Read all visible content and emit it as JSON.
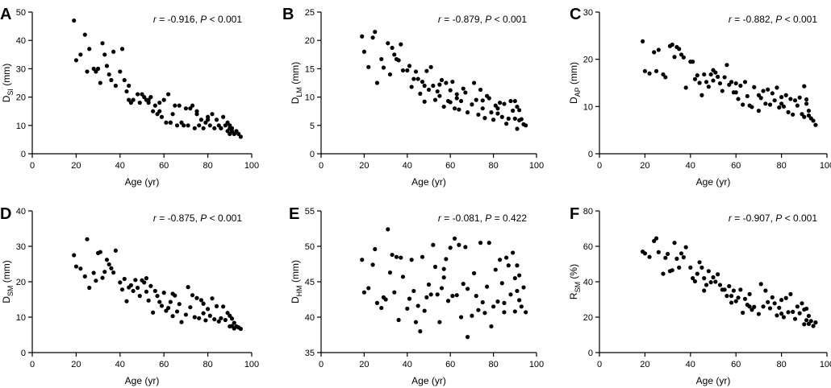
{
  "figure": {
    "panels": [
      "A",
      "B",
      "C",
      "D",
      "E",
      "F"
    ]
  },
  "chart_data": [
    {
      "panel": "A",
      "type": "scatter",
      "xlabel": "Age (yr)",
      "ylabel_main": "D",
      "ylabel_sub": "SI",
      "ylabel_unit": " (mm)",
      "xlim": [
        0,
        100
      ],
      "ylim": [
        0,
        50
      ],
      "xticks": [
        0,
        20,
        40,
        60,
        80,
        100
      ],
      "yticks": [
        0,
        10,
        20,
        30,
        40,
        50
      ],
      "stat_r_symbol": "r",
      "stat_r_value": " = -0.916, ",
      "stat_p_symbol": "P",
      "stat_p_value": " < 0.001",
      "x": [
        19,
        20,
        22,
        24,
        25,
        26,
        28,
        29,
        30,
        31,
        32,
        33,
        34,
        35,
        36,
        37,
        38,
        40,
        41,
        42,
        43,
        44,
        45,
        46,
        48,
        49,
        50,
        51,
        52,
        53,
        54,
        55,
        56,
        57,
        58,
        59,
        60,
        61,
        62,
        63,
        64,
        65,
        66,
        67,
        68,
        70,
        71,
        72,
        73,
        74,
        75,
        76,
        77,
        78,
        79,
        80,
        81,
        82,
        83,
        84,
        85,
        86,
        87,
        88,
        89,
        89,
        90,
        90,
        90,
        91,
        91,
        92,
        92,
        93,
        94,
        95,
        63,
        75,
        58,
        80,
        44,
        53,
        69,
        86
      ],
      "y": [
        47,
        33,
        35,
        42,
        29,
        37,
        30,
        29,
        30,
        25,
        39,
        35,
        31,
        28,
        26,
        36,
        24,
        29,
        37,
        26,
        22,
        19,
        18,
        19,
        21,
        18,
        21,
        20,
        19,
        19,
        20,
        15,
        17,
        14,
        18,
        13,
        19,
        11,
        21,
        11,
        14,
        17,
        10,
        17,
        11,
        16,
        10,
        16,
        17,
        9,
        15,
        10,
        12,
        9,
        11,
        12,
        10,
        14,
        9,
        12,
        10,
        9,
        13,
        10,
        11,
        8,
        9,
        10,
        7,
        8,
        9,
        7,
        7,
        8,
        7,
        6,
        11,
        14,
        15,
        13,
        24,
        18,
        10,
        9
      ]
    },
    {
      "panel": "B",
      "type": "scatter",
      "xlabel": "Age (yr)",
      "ylabel_main": "D",
      "ylabel_sub": "LM",
      "ylabel_unit": " (mm)",
      "xlim": [
        0,
        100
      ],
      "ylim": [
        0,
        25
      ],
      "xticks": [
        0,
        20,
        40,
        60,
        80,
        100
      ],
      "yticks": [
        0,
        5,
        10,
        15,
        20,
        25
      ],
      "stat_r_symbol": "r",
      "stat_r_value": " = -0.879, ",
      "stat_p_symbol": "P",
      "stat_p_value": " < 0.001",
      "x": [
        19,
        20,
        22,
        24,
        25,
        26,
        28,
        29,
        31,
        32,
        33,
        34,
        35,
        36,
        37,
        38,
        40,
        41,
        42,
        43,
        44,
        45,
        46,
        47,
        48,
        49,
        50,
        51,
        52,
        53,
        54,
        55,
        56,
        57,
        58,
        59,
        60,
        61,
        62,
        63,
        64,
        65,
        66,
        67,
        68,
        70,
        71,
        72,
        73,
        74,
        75,
        76,
        77,
        78,
        79,
        80,
        81,
        82,
        83,
        84,
        85,
        86,
        87,
        88,
        89,
        90,
        90,
        91,
        91,
        92,
        92,
        93,
        94,
        95,
        55,
        63,
        75,
        82,
        60,
        48
      ],
      "y": [
        20.7,
        18,
        15.3,
        20.5,
        21.5,
        12.5,
        16.7,
        15.2,
        19.5,
        14,
        18.7,
        17.5,
        16.7,
        16.5,
        19.3,
        14.7,
        14.7,
        15.5,
        11.8,
        13.2,
        14.5,
        13.2,
        10.6,
        12.7,
        9.2,
        14.6,
        11.3,
        15.3,
        12,
        9.5,
        11,
        10.2,
        13,
        8.3,
        12.5,
        9.3,
        11.2,
        12.7,
        8,
        10.5,
        7.8,
        9.3,
        11.5,
        10.8,
        7.3,
        8.7,
        12.5,
        9.5,
        6.9,
        11.3,
        8,
        6.3,
        10.2,
        9.8,
        7.3,
        6,
        8.5,
        7.1,
        9,
        6.5,
        8.8,
        5.3,
        6.2,
        9.3,
        7.6,
        9.3,
        6.2,
        8.3,
        4.4,
        7.7,
        5.9,
        6.1,
        5.2,
        5,
        12.2,
        9.8,
        9.4,
        8,
        9.1,
        12
      ]
    },
    {
      "panel": "C",
      "type": "scatter",
      "xlabel": "Age (yr)",
      "ylabel_main": "D",
      "ylabel_sub": "AP",
      "ylabel_unit": " (mm)",
      "xlim": [
        0,
        100
      ],
      "ylim": [
        0,
        30
      ],
      "xticks": [
        0,
        20,
        40,
        60,
        80,
        100
      ],
      "yticks": [
        0,
        10,
        20,
        30
      ],
      "stat_r_symbol": "r",
      "stat_r_value": " = -0.882, ",
      "stat_p_symbol": "P",
      "stat_p_value": " < 0.001",
      "x": [
        19,
        20,
        22,
        24,
        25,
        26,
        28,
        29,
        31,
        32,
        33,
        34,
        35,
        36,
        37,
        38,
        40,
        41,
        42,
        43,
        44,
        45,
        46,
        47,
        48,
        49,
        50,
        51,
        52,
        53,
        54,
        55,
        56,
        57,
        58,
        59,
        60,
        61,
        62,
        63,
        64,
        65,
        66,
        67,
        68,
        70,
        71,
        72,
        73,
        74,
        75,
        76,
        77,
        78,
        79,
        80,
        81,
        82,
        83,
        84,
        85,
        86,
        87,
        88,
        89,
        90,
        90,
        91,
        91,
        92,
        92,
        93,
        94,
        95,
        50,
        60,
        70,
        80
      ],
      "y": [
        23.8,
        17.5,
        17,
        21.5,
        17.5,
        22,
        16.8,
        16.2,
        22.8,
        23.1,
        20.5,
        22.6,
        22.2,
        21,
        20.4,
        14,
        19.5,
        19.5,
        15.8,
        16.6,
        15,
        12.4,
        16.8,
        15.2,
        14.2,
        16.8,
        17.7,
        17.2,
        16.3,
        14.9,
        13.3,
        16.2,
        18.8,
        14.6,
        15.2,
        13,
        14.9,
        11.6,
        14.4,
        10.4,
        15.2,
        12.2,
        10.2,
        9.9,
        14.1,
        9.1,
        11.8,
        13.3,
        10.6,
        13.6,
        10.4,
        12.8,
        11.3,
        14,
        9.8,
        12,
        10,
        12.4,
        8.8,
        11.6,
        8.3,
        11.3,
        10.2,
        11.9,
        8.4,
        14.3,
        7.8,
        11.5,
        10.6,
        8.1,
        9.1,
        7.5,
        7,
        6.1,
        15.5,
        13,
        12.4,
        10.6
      ]
    },
    {
      "panel": "D",
      "type": "scatter",
      "xlabel": "Age (yr)",
      "ylabel_main": "D",
      "ylabel_sub": "SM",
      "ylabel_unit": " (mm)",
      "xlim": [
        0,
        100
      ],
      "ylim": [
        0,
        40
      ],
      "xticks": [
        0,
        20,
        40,
        60,
        80,
        100
      ],
      "yticks": [
        0,
        10,
        20,
        30,
        40
      ],
      "stat_r_symbol": "r",
      "stat_r_value": " = -0.875, ",
      "stat_p_symbol": "P",
      "stat_p_value": " < 0.001",
      "x": [
        19,
        20,
        22,
        24,
        25,
        26,
        28,
        29,
        30,
        31,
        32,
        33,
        34,
        35,
        36,
        37,
        38,
        40,
        41,
        42,
        43,
        44,
        45,
        46,
        47,
        48,
        49,
        50,
        51,
        52,
        53,
        54,
        55,
        56,
        57,
        58,
        59,
        60,
        61,
        62,
        63,
        64,
        65,
        66,
        67,
        68,
        70,
        71,
        72,
        73,
        74,
        75,
        76,
        77,
        78,
        79,
        80,
        81,
        82,
        83,
        84,
        85,
        86,
        87,
        88,
        89,
        90,
        90,
        91,
        91,
        92,
        92,
        93,
        94,
        95,
        52,
        64,
        78
      ],
      "y": [
        27.5,
        24.3,
        23.7,
        21.5,
        32,
        18.3,
        22.5,
        20.3,
        28.1,
        28.4,
        21.1,
        22.8,
        26.2,
        24.9,
        23.8,
        22.6,
        28.8,
        19.8,
        17.8,
        20.8,
        14.5,
        18.4,
        19,
        17.4,
        20.5,
        18.3,
        16,
        20.4,
        19.8,
        17.2,
        14.7,
        18.8,
        11.3,
        17.4,
        16,
        14.3,
        13.2,
        16.9,
        11.8,
        12.6,
        14.3,
        10.3,
        16.1,
        11.6,
        13.7,
        8.6,
        10.7,
        18.5,
        12.8,
        16.2,
        10,
        15.4,
        9.7,
        14.8,
        11.1,
        9.1,
        12.3,
        10.4,
        15.3,
        9.4,
        13.1,
        8.8,
        9.7,
        13,
        9.2,
        11.2,
        10.4,
        7.4,
        9.6,
        7.5,
        8.4,
        6.8,
        7.4,
        7.1,
        6.7,
        21,
        16.6,
        13.8
      ]
    },
    {
      "panel": "E",
      "type": "scatter",
      "xlabel": "Age (yr)",
      "ylabel_main": "D",
      "ylabel_sub": "HM",
      "ylabel_unit": " (mm)",
      "xlim": [
        0,
        100
      ],
      "ylim": [
        35,
        55
      ],
      "xticks": [
        0,
        20,
        40,
        60,
        80,
        100
      ],
      "yticks": [
        35,
        40,
        45,
        50,
        55
      ],
      "stat_r_symbol": "r",
      "stat_r_value": " = -0.081, ",
      "stat_p_symbol": "P",
      "stat_p_value": " = 0.422",
      "x": [
        19,
        20,
        22,
        24,
        25,
        26,
        28,
        29,
        31,
        32,
        33,
        34,
        35,
        36,
        37,
        38,
        40,
        41,
        42,
        43,
        44,
        45,
        46,
        47,
        48,
        49,
        50,
        51,
        52,
        53,
        54,
        55,
        56,
        57,
        58,
        59,
        60,
        61,
        62,
        63,
        64,
        65,
        66,
        67,
        68,
        70,
        71,
        72,
        73,
        74,
        75,
        76,
        77,
        78,
        79,
        80,
        81,
        82,
        83,
        84,
        85,
        86,
        87,
        88,
        89,
        90,
        90,
        91,
        91,
        92,
        92,
        93,
        94,
        95,
        30,
        57,
        68,
        85
      ],
      "y": [
        48.1,
        43.5,
        44.1,
        47.4,
        49.6,
        42,
        41.3,
        42.8,
        52.4,
        46.3,
        48.8,
        43.5,
        48.5,
        39.6,
        48.4,
        45.7,
        41.2,
        42.6,
        48.1,
        43.7,
        39.3,
        41.6,
        38,
        48.5,
        40.9,
        42.8,
        44.6,
        43.2,
        50.2,
        47.1,
        43.2,
        39.3,
        44.1,
        46.8,
        48.2,
        42.3,
        49.8,
        43,
        51.1,
        43.1,
        50.2,
        40,
        44.7,
        49.9,
        37.2,
        40.2,
        46.2,
        43,
        41,
        50.5,
        42.1,
        40.6,
        44.3,
        50.5,
        38.7,
        41.5,
        46.7,
        42.2,
        48.1,
        44.8,
        40.7,
        48.4,
        47.3,
        43.2,
        49.1,
        45.5,
        40.8,
        47.3,
        43.7,
        45.9,
        42.4,
        41.5,
        44.2,
        40.7,
        42.5,
        45.6,
        44,
        42
      ]
    },
    {
      "panel": "F",
      "type": "scatter",
      "xlabel": "Age (yr)",
      "ylabel_main": "R",
      "ylabel_sub": "SM",
      "ylabel_unit": " (%)",
      "xlim": [
        0,
        100
      ],
      "ylim": [
        0,
        80
      ],
      "xticks": [
        0,
        20,
        40,
        60,
        80,
        100
      ],
      "yticks": [
        0,
        20,
        40,
        60,
        80
      ],
      "stat_r_symbol": "r",
      "stat_r_value": " = -0.907, ",
      "stat_p_symbol": "P",
      "stat_p_value": " < 0.001",
      "x": [
        19,
        20,
        22,
        24,
        25,
        26,
        28,
        29,
        30,
        31,
        32,
        33,
        34,
        35,
        36,
        37,
        38,
        40,
        41,
        42,
        43,
        44,
        45,
        46,
        47,
        48,
        49,
        50,
        51,
        52,
        53,
        54,
        55,
        56,
        57,
        58,
        59,
        60,
        61,
        62,
        63,
        64,
        65,
        66,
        67,
        68,
        70,
        71,
        72,
        73,
        74,
        75,
        76,
        77,
        78,
        79,
        80,
        81,
        82,
        83,
        84,
        85,
        86,
        87,
        88,
        89,
        90,
        90,
        91,
        91,
        92,
        92,
        93,
        94,
        95,
        46,
        58,
        66,
        80
      ],
      "y": [
        57,
        56,
        54,
        63,
        64.5,
        56.7,
        44.5,
        53.5,
        55.7,
        46,
        46.5,
        62,
        53,
        48,
        56,
        53.8,
        59.5,
        48,
        42,
        40.2,
        44.5,
        51,
        48,
        42,
        38.2,
        46,
        39.7,
        42.5,
        40,
        44.2,
        38.2,
        35.5,
        35.5,
        32,
        37.5,
        28.2,
        35,
        29,
        31,
        35.5,
        22.5,
        30.3,
        27,
        33,
        24.2,
        25.8,
        21.8,
        38.7,
        26,
        35,
        28.5,
        25,
        31.2,
        27.8,
        21,
        25.3,
        29.7,
        20,
        30.8,
        22.8,
        33,
        23,
        19,
        26,
        22.2,
        27.8,
        24.3,
        16,
        24.8,
        18.3,
        20.7,
        16.2,
        17.8,
        15,
        17,
        35,
        32,
        26,
        22
      ]
    }
  ]
}
